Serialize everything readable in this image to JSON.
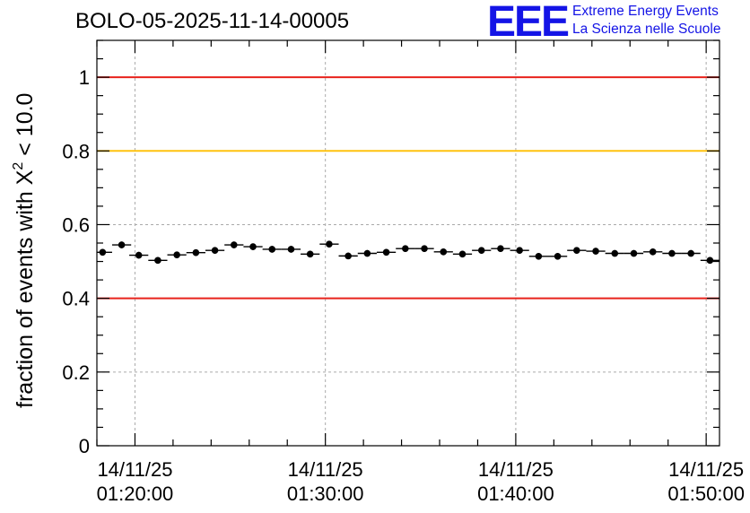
{
  "header": {
    "run_id": "BOLO-05-2025-11-14-00005",
    "logo_text": "EEE",
    "org_line1": "Extreme Energy Events",
    "org_line2": "La Scienza nelle Scuole"
  },
  "chart_data": {
    "type": "scatter",
    "title": "BOLO-05-2025-11-14-00005",
    "ylabel": "fraction of events with χ² < 10.0",
    "ylabel_main": "fraction of events with X",
    "ylabel_sup": "2",
    "ylabel_tail": " < 10.0",
    "xlabel": "",
    "x_unit": "minutes since 14/11/25 01:20:00",
    "xlim": [
      -2,
      30.7
    ],
    "ylim": [
      0,
      1.1
    ],
    "yticks": [
      0,
      0.2,
      0.4,
      0.6,
      0.8,
      1
    ],
    "ytick_labels": [
      "0",
      "0.2",
      "0.4",
      "0.6",
      "0.8",
      "1"
    ],
    "xticks": [
      {
        "x": 0,
        "label_date": "14/11/25",
        "label_time": "01:20:00"
      },
      {
        "x": 10,
        "label_date": "14/11/25",
        "label_time": "01:30:00"
      },
      {
        "x": 20,
        "label_date": "14/11/25",
        "label_time": "01:40:00"
      },
      {
        "x": 30,
        "label_date": "14/11/25",
        "label_time": "01:50:00"
      }
    ],
    "reference_lines": [
      {
        "y": 1.0,
        "color": "#e8231c"
      },
      {
        "y": 0.8,
        "color": "#ffc20e"
      },
      {
        "y": 0.4,
        "color": "#e8231c"
      }
    ],
    "bin_half_width": 0.5,
    "x": [
      -1.7,
      -0.7,
      0.2,
      1.2,
      2.2,
      3.2,
      4.2,
      5.2,
      6.2,
      7.2,
      8.2,
      9.2,
      10.2,
      11.2,
      12.2,
      13.2,
      14.2,
      15.2,
      16.2,
      17.2,
      18.2,
      19.2,
      20.2,
      21.2,
      22.2,
      23.2,
      24.2,
      25.2,
      26.2,
      27.2,
      28.2,
      29.2,
      30.2
    ],
    "series": [
      {
        "name": "fraction",
        "values": [
          0.525,
          0.545,
          0.517,
          0.503,
          0.518,
          0.524,
          0.53,
          0.545,
          0.54,
          0.533,
          0.533,
          0.52,
          0.547,
          0.515,
          0.522,
          0.525,
          0.535,
          0.535,
          0.526,
          0.52,
          0.53,
          0.535,
          0.53,
          0.514,
          0.514,
          0.53,
          0.528,
          0.522,
          0.522,
          0.526,
          0.522,
          0.522,
          0.503
        ],
        "errors": [
          0.009,
          0.009,
          0.009,
          0.009,
          0.009,
          0.009,
          0.009,
          0.009,
          0.009,
          0.009,
          0.009,
          0.009,
          0.009,
          0.009,
          0.009,
          0.009,
          0.009,
          0.009,
          0.009,
          0.009,
          0.009,
          0.009,
          0.009,
          0.009,
          0.009,
          0.009,
          0.009,
          0.009,
          0.009,
          0.009,
          0.009,
          0.009,
          0.009
        ]
      }
    ],
    "grid": true
  }
}
